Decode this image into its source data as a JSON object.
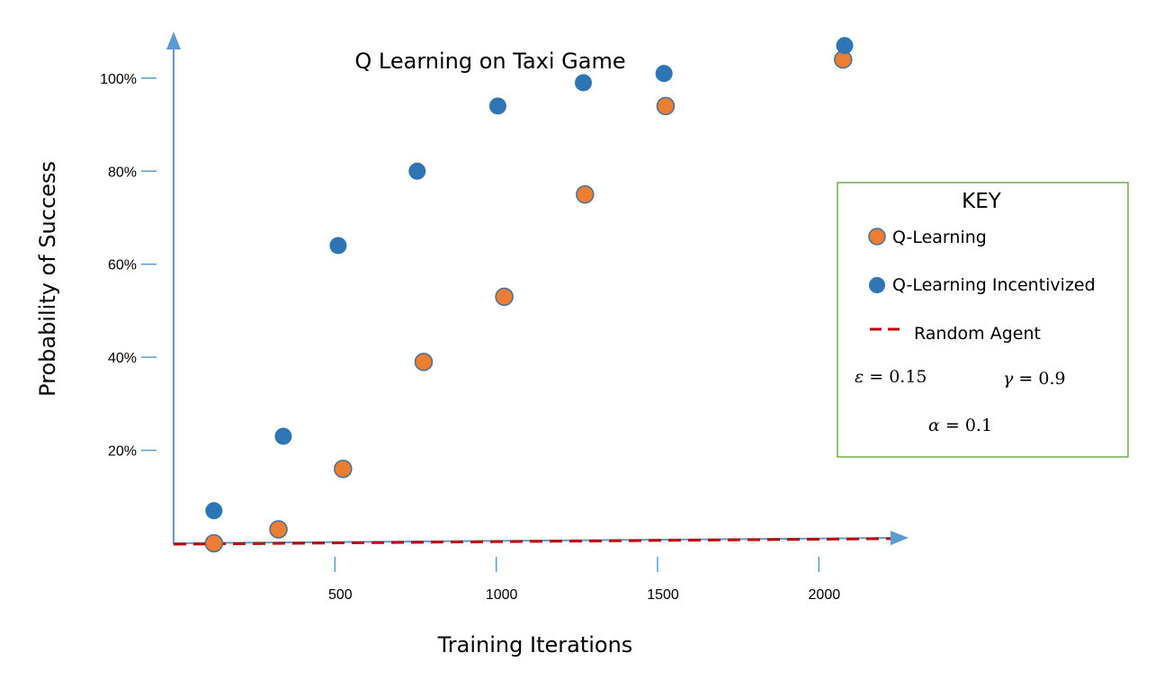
{
  "chart_data": {
    "type": "scatter",
    "title": "Q Learning on Taxi Game",
    "xlabel": "Training Iterations",
    "ylabel": "Probability of Success",
    "x_ticks": [
      500,
      1000,
      1500,
      2000
    ],
    "y_ticks": [
      {
        "value": 20,
        "label": "20%"
      },
      {
        "value": 40,
        "label": "40%"
      },
      {
        "value": 60,
        "label": "60%"
      },
      {
        "value": 80,
        "label": "80%"
      },
      {
        "value": 100,
        "label": "100%"
      }
    ],
    "xlim": [
      0,
      2250
    ],
    "ylim": [
      0,
      105
    ],
    "grid": false,
    "legend_title": "KEY",
    "legend_position": "right",
    "series": [
      {
        "name": "Q-Learning",
        "color": "#ed7d31",
        "x": [
          125,
          325,
          525,
          775,
          1025,
          1275,
          1525,
          2075
        ],
        "y": [
          0,
          3,
          16,
          39,
          53,
          75,
          94,
          104
        ]
      },
      {
        "name": "Q-Learning Incentivized",
        "color": "#2e75b6",
        "x": [
          125,
          340,
          510,
          755,
          1005,
          1270,
          1520,
          2080
        ],
        "y": [
          7,
          23,
          64,
          80,
          94,
          99,
          101,
          107
        ]
      },
      {
        "name": "Random Agent",
        "color": "#c00000",
        "style": "dashed-line",
        "x": [
          0,
          2250
        ],
        "y": [
          0,
          1
        ]
      }
    ],
    "parameters": [
      {
        "symbol": "ε",
        "value": "0.15"
      },
      {
        "symbol": "γ",
        "value": "0.9"
      },
      {
        "symbol": "α",
        "value": "0.1"
      }
    ]
  }
}
